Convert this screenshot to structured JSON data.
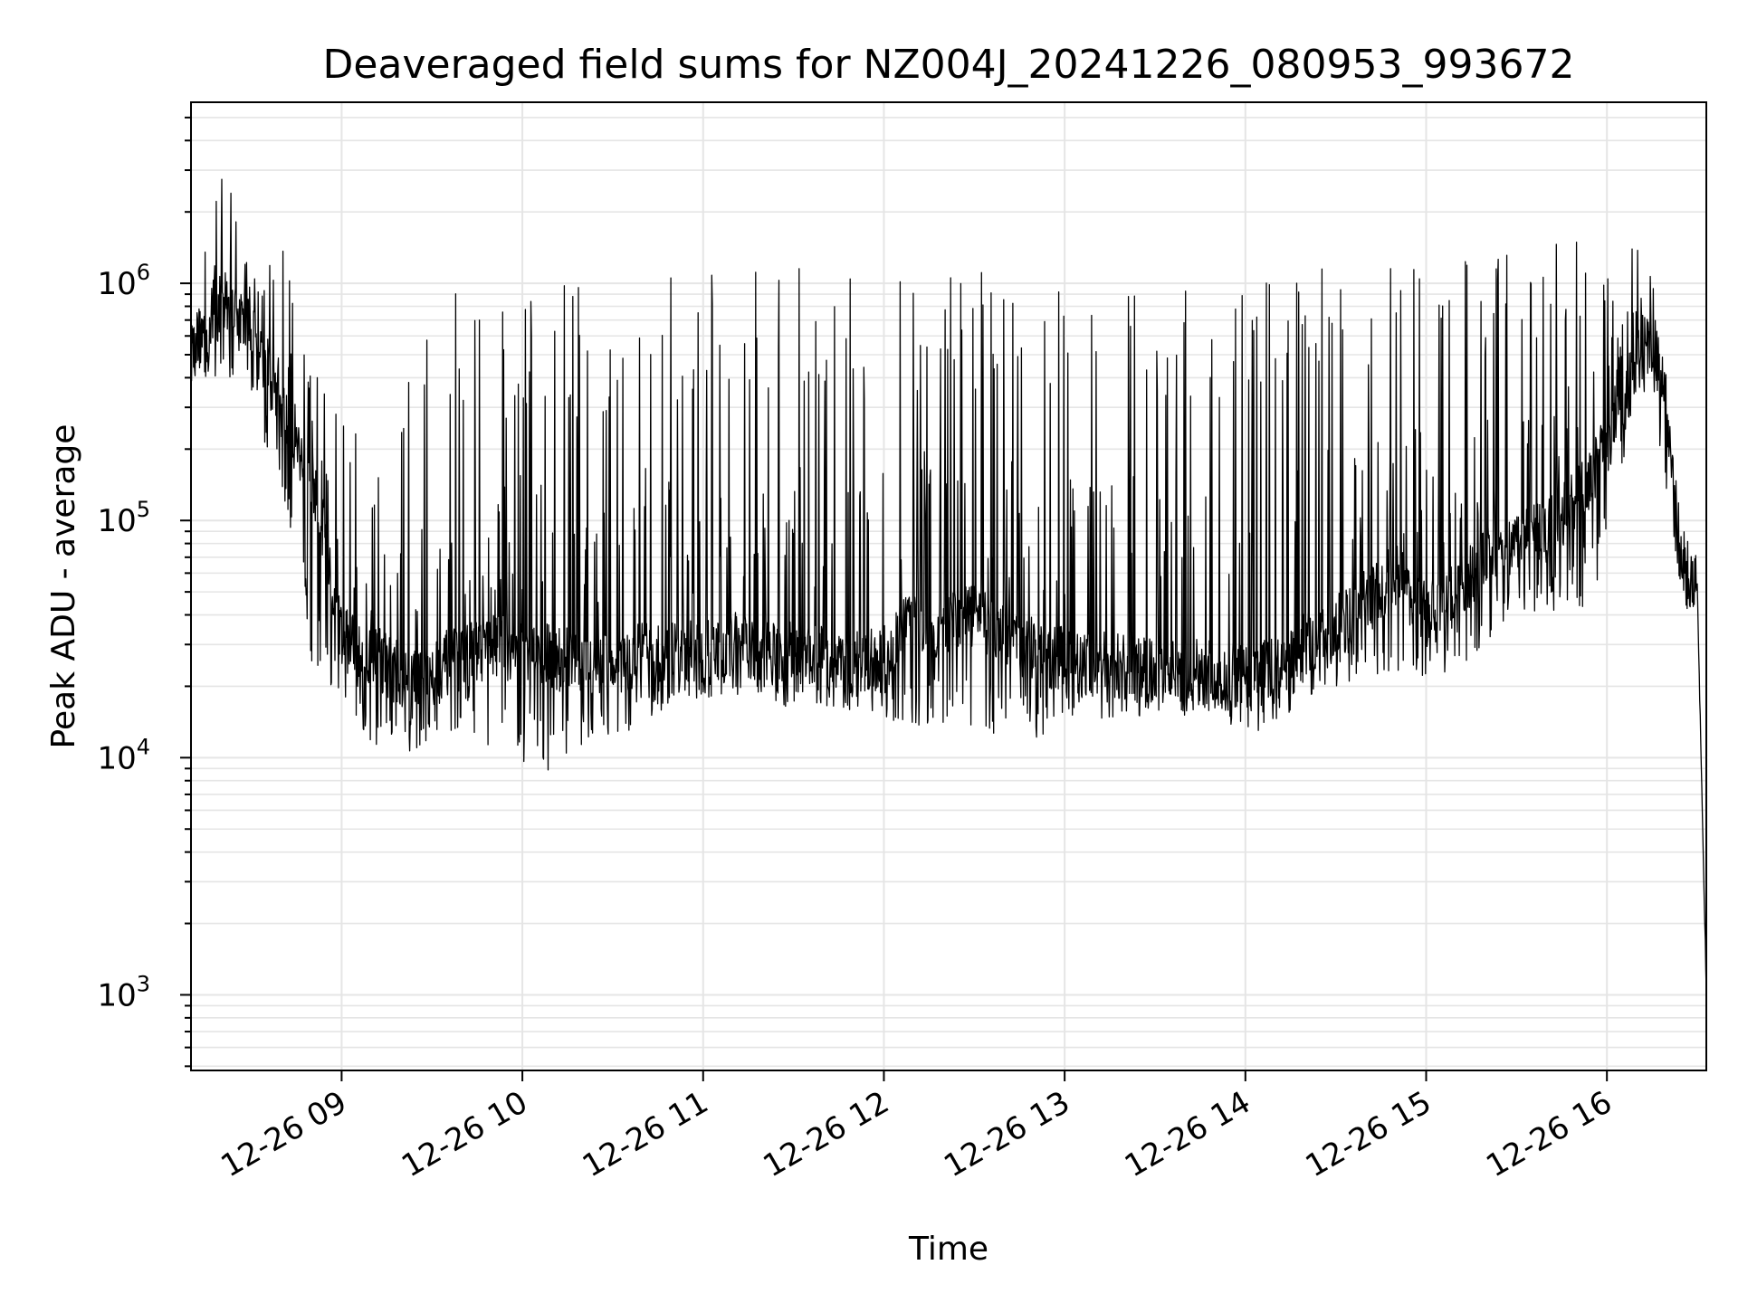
{
  "chart_data": {
    "type": "line",
    "title": "Deaveraged field sums for NZ004J_20241226_080953_993672",
    "xlabel": "Time",
    "ylabel": "Peak ADU - average",
    "yscale": "log",
    "ylim": [
      480,
      5800000
    ],
    "xlim": [
      "2024-12-26 08:10",
      "2024-12-26 16:33"
    ],
    "x_tick_labels": [
      "12-26 09",
      "12-26 10",
      "12-26 11",
      "12-26 12",
      "12-26 13",
      "12-26 14",
      "12-26 15",
      "12-26 16"
    ],
    "y_tick_labels": [
      {
        "base": "10",
        "exp": "3",
        "value": 1000
      },
      {
        "base": "10",
        "exp": "4",
        "value": 10000
      },
      {
        "base": "10",
        "exp": "5",
        "value": 100000
      },
      {
        "base": "10",
        "exp": "6",
        "value": 1000000
      }
    ],
    "grid": true,
    "line_color": "#000000",
    "grid_color": "#e5e5e5",
    "series": [
      {
        "x": [
          "2024-12-26 08:10",
          "2024-12-26 08:20",
          "2024-12-26 08:30",
          "2024-12-26 08:40",
          "2024-12-26 08:50",
          "2024-12-26 09:00",
          "2024-12-26 09:10",
          "2024-12-26 09:20",
          "2024-12-26 09:30",
          "2024-12-26 09:40",
          "2024-12-26 09:50",
          "2024-12-26 10:00",
          "2024-12-26 10:10",
          "2024-12-26 10:20",
          "2024-12-26 10:30",
          "2024-12-26 10:40",
          "2024-12-26 10:50",
          "2024-12-26 11:00",
          "2024-12-26 11:10",
          "2024-12-26 11:20",
          "2024-12-26 11:30",
          "2024-12-26 11:40",
          "2024-12-26 11:50",
          "2024-12-26 12:00",
          "2024-12-26 12:10",
          "2024-12-26 12:20",
          "2024-12-26 12:30",
          "2024-12-26 12:40",
          "2024-12-26 12:50",
          "2024-12-26 13:00",
          "2024-12-26 13:10",
          "2024-12-26 13:20",
          "2024-12-26 13:30",
          "2024-12-26 13:40",
          "2024-12-26 13:50",
          "2024-12-26 14:00",
          "2024-12-26 14:10",
          "2024-12-26 14:20",
          "2024-12-26 14:30",
          "2024-12-26 14:40",
          "2024-12-26 14:50",
          "2024-12-26 15:00",
          "2024-12-26 15:10",
          "2024-12-26 15:20",
          "2024-12-26 15:30",
          "2024-12-26 15:40",
          "2024-12-26 15:50",
          "2024-12-26 16:00",
          "2024-12-26 16:05",
          "2024-12-26 16:10",
          "2024-12-26 16:15",
          "2024-12-26 16:20",
          "2024-12-26 16:25",
          "2024-12-26 16:30",
          "2024-12-26 16:33"
        ],
        "y_baseline": [
          520000,
          800000,
          650000,
          300000,
          150000,
          32000,
          28000,
          22000,
          24000,
          26000,
          30000,
          28000,
          27000,
          24000,
          25000,
          27000,
          28000,
          27000,
          30000,
          28000,
          27000,
          26000,
          25000,
          26000,
          40000,
          35000,
          40000,
          32000,
          28000,
          26000,
          25000,
          24000,
          24000,
          23000,
          23000,
          22000,
          24000,
          30000,
          35000,
          45000,
          60000,
          40000,
          50000,
          70000,
          80000,
          90000,
          120000,
          200000,
          300000,
          500000,
          600000,
          300000,
          70000,
          50000,
          1000
        ],
        "y_peak": [
          700000,
          3800000,
          1000000,
          1600000,
          500000,
          300000,
          200000,
          400000,
          900000,
          950000,
          700000,
          900000,
          1000000,
          1000000,
          900000,
          1100000,
          1150000,
          1200000,
          1200000,
          1200000,
          1200000,
          1100000,
          1250000,
          1200000,
          1100000,
          1100000,
          1150000,
          1100000,
          1000000,
          1100000,
          1000000,
          1050000,
          1100000,
          1100000,
          1100000,
          1100000,
          1150000,
          1200000,
          1250000,
          1300000,
          1300000,
          1300000,
          1350000,
          1400000,
          1400000,
          1450000,
          1500000,
          1500000,
          1600000,
          1850000,
          1100000,
          200000,
          80000,
          60000,
          1000
        ],
        "y_min": [
          450000,
          300000,
          280000,
          120000,
          25000,
          17000,
          11000,
          10000,
          12000,
          13000,
          10000,
          9500,
          8300,
          11000,
          12000,
          14000,
          17000,
          18000,
          18000,
          17000,
          16000,
          15000,
          16000,
          15000,
          13000,
          14000,
          13000,
          12000,
          12000,
          13000,
          14000,
          15000,
          15000,
          15000,
          16000,
          12000,
          14000,
          17000,
          20000,
          22000,
          22000,
          22000,
          23000,
          30000,
          36000,
          40000,
          40000,
          60000,
          150000,
          300000,
          400000,
          100000,
          50000,
          30000,
          1000
        ]
      }
    ]
  }
}
